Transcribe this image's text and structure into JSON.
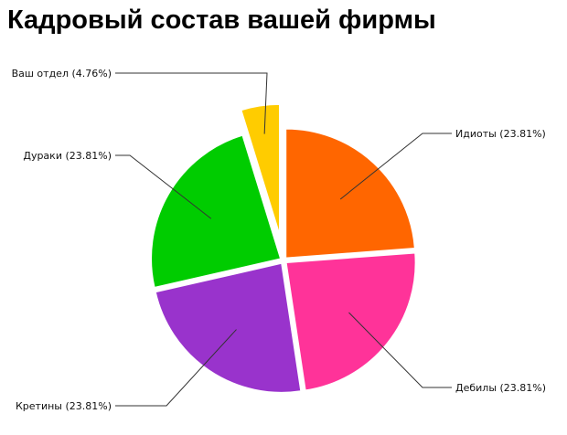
{
  "chart_data": {
    "type": "pie",
    "title": "Кадровый состав вашей фирмы",
    "slices": [
      {
        "label": "Идиоты (23.81%)",
        "value": 23.81,
        "color": "#ff6600"
      },
      {
        "label": "Дебилы (23.81%)",
        "value": 23.81,
        "color": "#ff3399"
      },
      {
        "label": "Кретины (23.81%)",
        "value": 23.81,
        "color": "#9933cc"
      },
      {
        "label": "Дураки (23.81%)",
        "value": 23.81,
        "color": "#00cc00"
      },
      {
        "label": "Ваш отдел (4.76%)",
        "value": 4.76,
        "color": "#ffcc00",
        "exploded": true
      }
    ]
  }
}
